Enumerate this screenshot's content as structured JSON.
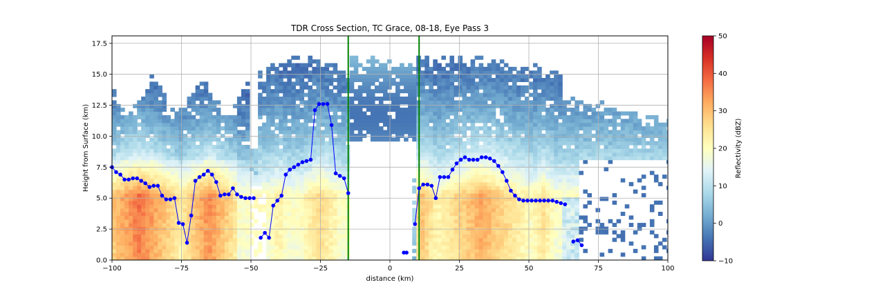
{
  "chart_data": {
    "type": "heatmap",
    "title": "TDR Cross Section, TC Grace, 08-18, Eye Pass 3",
    "xlabel": "distance (km)",
    "ylabel": "Height from Surface (km)",
    "xlim": [
      -100,
      100
    ],
    "ylim": [
      0,
      18.1
    ],
    "xticks": [
      "−100",
      "−75",
      "−50",
      "−25",
      "0",
      "25",
      "50",
      "75",
      "100"
    ],
    "xtick_values": [
      -100,
      -75,
      -50,
      -25,
      0,
      25,
      50,
      75,
      100
    ],
    "yticks": [
      "0.0",
      "2.5",
      "5.0",
      "7.5",
      "10.0",
      "12.5",
      "15.0",
      "17.5"
    ],
    "ytick_values": [
      0,
      2.5,
      5,
      7.5,
      10,
      12.5,
      15,
      17.5
    ],
    "grid": true,
    "colorbar": {
      "label": "Reflectivity (dBZ)",
      "colormap": "RdYlBu_r",
      "vmin": -10,
      "vmax": 50,
      "ticks": [
        "−10",
        "0",
        "10",
        "20",
        "30",
        "40",
        "50"
      ],
      "tick_values": [
        -10,
        0,
        10,
        20,
        30,
        40,
        50
      ]
    },
    "vertical_lines": [
      {
        "x": -15,
        "color": "#008000"
      },
      {
        "x": 10.5,
        "color": "#008000"
      }
    ],
    "series": [
      {
        "color": "#0000ff",
        "marker": "circle",
        "points": [
          [
            -100,
            7.5
          ],
          [
            -98.5,
            7.1
          ],
          [
            -97,
            6.9
          ],
          [
            -95.5,
            6.5
          ],
          [
            -94,
            6.5
          ],
          [
            -92.5,
            6.6
          ],
          [
            -91,
            6.6
          ],
          [
            -89.5,
            6.4
          ],
          [
            -88,
            6.2
          ],
          [
            -86.5,
            5.9
          ],
          [
            -85,
            6.0
          ],
          [
            -83.5,
            6.0
          ],
          [
            -82,
            5.2
          ],
          [
            -80.5,
            4.9
          ],
          [
            -79,
            4.9
          ],
          [
            -77.5,
            5.0
          ],
          [
            -76,
            3.0
          ],
          [
            -74.5,
            2.9
          ],
          [
            -73,
            1.4
          ],
          [
            -71.5,
            3.6
          ],
          [
            -70,
            6.4
          ],
          [
            -68.5,
            6.7
          ],
          [
            -67,
            6.9
          ],
          [
            -65.5,
            7.2
          ],
          [
            -64,
            6.9
          ],
          [
            -62.5,
            6.3
          ],
          [
            -61,
            5.2
          ],
          [
            -59.5,
            5.3
          ],
          [
            -58,
            5.3
          ],
          [
            -56.5,
            5.8
          ],
          [
            -55,
            5.3
          ],
          [
            -53.5,
            5.1
          ],
          [
            -52,
            5.0
          ],
          [
            -50.5,
            5.0
          ],
          [
            -49,
            5.0
          ],
          null,
          [
            -46.5,
            1.8
          ],
          [
            -45,
            2.2
          ],
          [
            -43.5,
            1.8
          ],
          [
            -42,
            4.4
          ],
          [
            -40.5,
            4.8
          ],
          [
            -39,
            5.2
          ],
          [
            -37.5,
            6.9
          ],
          [
            -36,
            7.3
          ],
          [
            -34.5,
            7.5
          ],
          [
            -33,
            7.7
          ],
          [
            -31.5,
            7.9
          ],
          [
            -30,
            8.0
          ],
          [
            -28.5,
            8.1
          ],
          [
            -27,
            12.1
          ],
          [
            -25.5,
            12.6
          ],
          [
            -24,
            12.6
          ],
          [
            -22.5,
            12.6
          ],
          [
            -21,
            10.9
          ],
          [
            -19.5,
            7.0
          ],
          [
            -18,
            6.8
          ],
          [
            -16.5,
            6.6
          ],
          [
            -15,
            5.4
          ],
          null,
          [
            5,
            0.6
          ],
          [
            6,
            0.6
          ],
          null,
          [
            9,
            2.9
          ],
          [
            10.5,
            5.8
          ],
          [
            12,
            6.1
          ],
          [
            13.5,
            6.1
          ],
          [
            15,
            6.0
          ],
          [
            16.5,
            5.0
          ],
          [
            18,
            6.7
          ],
          [
            19.5,
            6.7
          ],
          [
            21,
            6.7
          ],
          [
            22.5,
            7.3
          ],
          [
            24,
            7.8
          ],
          [
            25.5,
            8.1
          ],
          [
            27,
            8.3
          ],
          [
            28.5,
            8.1
          ],
          [
            30,
            8.1
          ],
          [
            31.5,
            8.1
          ],
          [
            33,
            8.3
          ],
          [
            34.5,
            8.3
          ],
          [
            36,
            8.2
          ],
          [
            37.5,
            8.0
          ],
          [
            39,
            7.6
          ],
          [
            40.5,
            7.1
          ],
          [
            42,
            6.4
          ],
          [
            43.5,
            5.6
          ],
          [
            45,
            5.2
          ],
          [
            46.5,
            4.9
          ],
          [
            48,
            4.8
          ],
          [
            49.5,
            4.8
          ],
          [
            51,
            4.8
          ],
          [
            52.5,
            4.8
          ],
          [
            54,
            4.8
          ],
          [
            55.5,
            4.8
          ],
          [
            57,
            4.8
          ],
          [
            58.5,
            4.8
          ],
          [
            60,
            4.7
          ],
          [
            61.5,
            4.6
          ],
          [
            63,
            4.5
          ],
          null,
          [
            66,
            1.5
          ],
          [
            67.5,
            1.6
          ],
          [
            69,
            1.2
          ]
        ]
      }
    ]
  }
}
